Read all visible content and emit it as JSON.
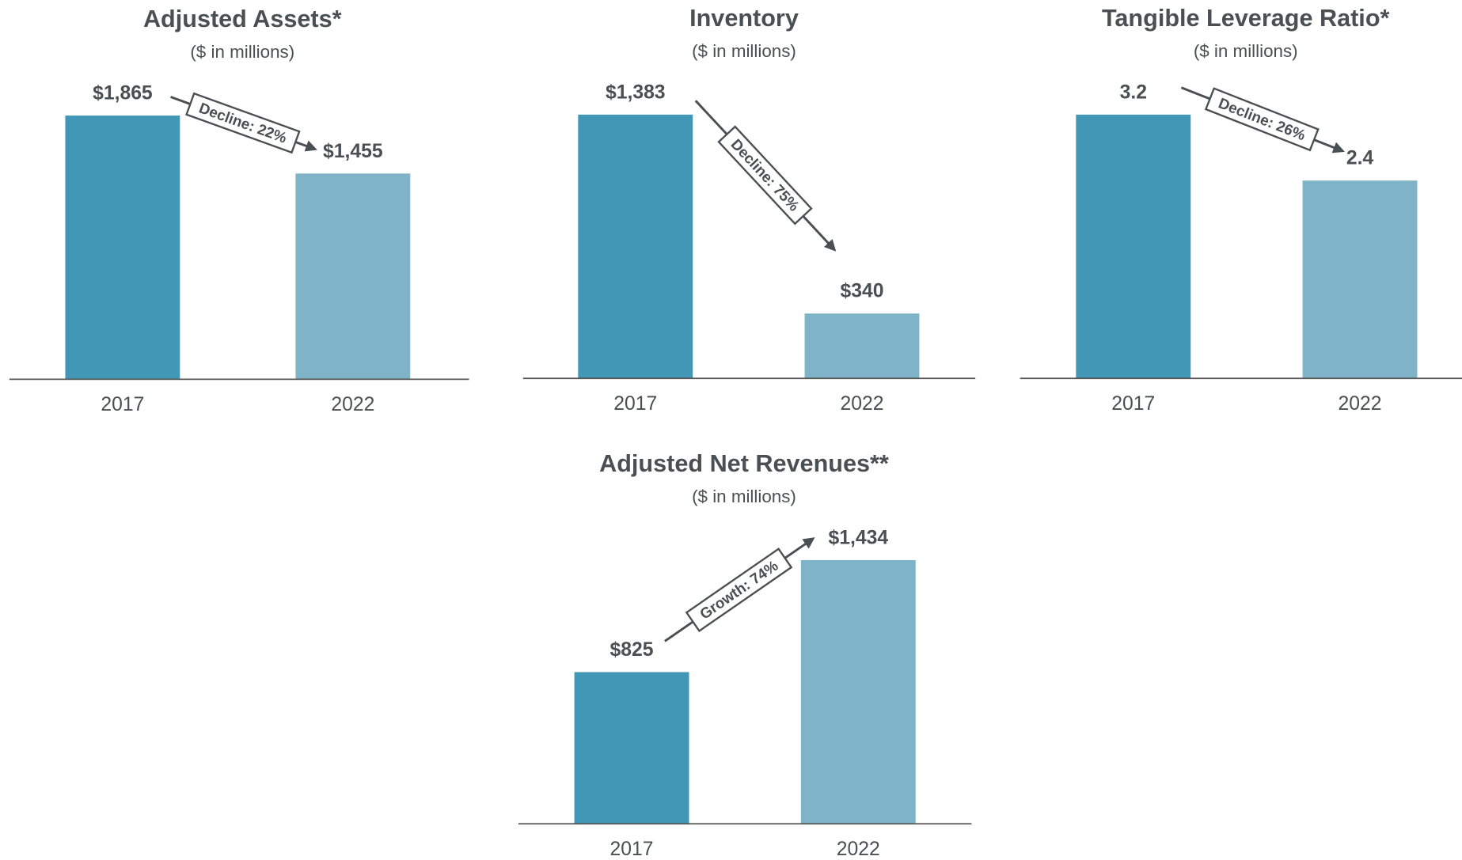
{
  "chart_data": [
    {
      "type": "bar",
      "title": "Adjusted Assets*",
      "subtitle": "($ in millions)",
      "categories": [
        "2017",
        "2022"
      ],
      "values": [
        1865,
        1455
      ],
      "value_labels": [
        "$1,865",
        "$1,455"
      ],
      "colors": [
        "#4197b5",
        "#7fb4c8"
      ],
      "annotation": "Decline: 22%"
    },
    {
      "type": "bar",
      "title": "Inventory",
      "subtitle": "($ in millions)",
      "categories": [
        "2017",
        "2022"
      ],
      "values": [
        1383,
        340
      ],
      "value_labels": [
        "$1,383",
        "$340"
      ],
      "colors": [
        "#4197b5",
        "#7fb4c8"
      ],
      "annotation": "Decline: 75%"
    },
    {
      "type": "bar",
      "title": "Tangible Leverage Ratio*",
      "subtitle": "($ in millions)",
      "categories": [
        "2017",
        "2022"
      ],
      "values": [
        3.2,
        2.4
      ],
      "colors": [
        "#4197b5",
        "#7fb4c8"
      ],
      "annotation": "Decline: 26%"
    },
    {
      "type": "bar",
      "title": "Adjusted Net Revenues**",
      "subtitle": "($ in millions)",
      "categories": [
        "2017",
        "2022"
      ],
      "values": [
        825,
        1434
      ],
      "value_labels": [
        "$825",
        "$1,434"
      ],
      "colors": [
        "#4197b5",
        "#7fb4c8"
      ],
      "annotation": "Growth: 74%"
    }
  ]
}
